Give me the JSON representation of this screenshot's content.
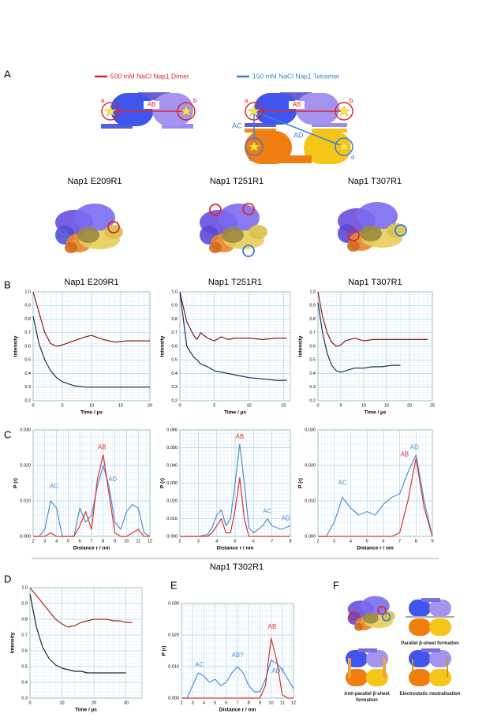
{
  "panel_labels": [
    "A",
    "B",
    "C",
    "D",
    "E",
    "F"
  ],
  "legend": [
    {
      "text": "500 mM NaCl Nap1 Dimer",
      "color": "#e0262a"
    },
    {
      "text": "150 mM NaCl Nap1 Tetramer",
      "color": "#3b7dd8"
    }
  ],
  "dimer_labels": {
    "a": "a",
    "ab": "AB",
    "b": "b"
  },
  "tetramer_labels": {
    "a": "a",
    "ab": "AB",
    "b": "b",
    "ac": "AC",
    "ad": "AD",
    "c": "c",
    "d": "d"
  },
  "structures": [
    "Nap1 E209R1",
    "Nap1 T251R1",
    "Nap1 T307R1"
  ],
  "section_title": "Nap1 T302R1",
  "panel_f_captions": [
    "Parallel β-sheet formation",
    "Anti-parallel β-sheet formation",
    "Electrostatic neutralisation"
  ],
  "chart_data": [
    {
      "type": "line",
      "title": "Nap1 E209R1",
      "xlabel": "Time / µs",
      "ylabel": "Intensity",
      "grid": true,
      "xlim": [
        0,
        20
      ],
      "xticks": [
        0,
        5,
        10,
        15,
        20
      ],
      "ylim": [
        0.2,
        1.0
      ],
      "yticks": [
        0.2,
        0.3,
        0.4,
        0.5,
        0.6,
        0.7,
        0.8,
        0.9,
        {
          "value": 1,
          "label": "1.0"
        }
      ],
      "x": [
        0,
        1,
        2,
        3,
        4,
        5,
        7,
        9,
        10,
        12,
        14,
        16,
        18,
        20
      ],
      "series": [
        {
          "color": "#8b1a1a",
          "values": [
            1,
            0.85,
            0.7,
            0.62,
            0.6,
            0.61,
            0.64,
            0.67,
            0.68,
            0.65,
            0.63,
            0.64,
            0.64,
            0.64
          ]
        },
        {
          "color": "#1f3550",
          "values": [
            0.82,
            0.62,
            0.5,
            0.42,
            0.37,
            0.34,
            0.31,
            0.3,
            0.3,
            0.3,
            0.3,
            0.3,
            0.3,
            0.3
          ]
        }
      ]
    },
    {
      "type": "line",
      "title": "Nap1 T251R1",
      "xlabel": "Time / µs",
      "ylabel": "Intensity",
      "grid": true,
      "xlim": [
        0,
        16
      ],
      "xticks": [
        0,
        5,
        10,
        15
      ],
      "ylim": [
        0.2,
        1.0
      ],
      "yticks": [
        0.2,
        0.3,
        0.4,
        0.5,
        0.6,
        0.7,
        0.8,
        0.9,
        {
          "value": 1,
          "label": "1.0"
        }
      ],
      "x": [
        0,
        1,
        2,
        2.5,
        3,
        4,
        5,
        6,
        7,
        8,
        10,
        12,
        14,
        15.5
      ],
      "series": [
        {
          "color": "#8b1a1a",
          "values": [
            1,
            0.78,
            0.68,
            0.65,
            0.7,
            0.66,
            0.64,
            0.67,
            0.65,
            0.66,
            0.66,
            0.65,
            0.66,
            0.66
          ]
        },
        {
          "color": "#1f3550",
          "values": [
            1,
            0.6,
            0.52,
            0.5,
            0.47,
            0.45,
            0.42,
            0.41,
            0.4,
            0.39,
            0.37,
            0.36,
            0.35,
            0.35
          ]
        }
      ]
    },
    {
      "type": "line",
      "title": "Nap1 T307R1",
      "xlabel": "Time / µs",
      "ylabel": "Intensity",
      "grid": true,
      "xlim": [
        0,
        25
      ],
      "xticks": [
        0,
        5,
        10,
        15,
        20,
        25
      ],
      "ylim": [
        0.2,
        1.0
      ],
      "yticks": [
        0.2,
        0.3,
        0.4,
        0.5,
        0.6,
        0.7,
        0.8,
        0.9,
        {
          "value": 1,
          "label": "1.0"
        }
      ],
      "x": [
        0,
        1,
        2,
        3,
        4,
        5,
        6,
        8,
        10,
        12,
        14,
        16,
        18,
        20,
        22,
        24
      ],
      "series": [
        {
          "color": "#8b1a1a",
          "values": [
            1,
            0.82,
            0.7,
            0.63,
            0.6,
            0.61,
            0.64,
            0.66,
            0.64,
            0.65,
            0.65,
            0.65,
            0.65,
            0.65,
            0.65,
            0.65
          ]
        },
        {
          "color": "#1f3550",
          "values": [
            0.92,
            0.7,
            0.55,
            0.46,
            0.42,
            0.41,
            0.42,
            0.44,
            0.44,
            0.45,
            0.45,
            0.46,
            0.46,
            null,
            null,
            null
          ]
        }
      ]
    },
    {
      "type": "line",
      "xlabel": "Distance r / nm",
      "ylabel": "P (r)",
      "grid": true,
      "xlim": [
        2,
        12
      ],
      "xticks": [
        2,
        3,
        4,
        5,
        6,
        7,
        8,
        9,
        10,
        11,
        12
      ],
      "ylim": [
        0,
        0.03
      ],
      "yticks": [
        {
          "value": 0,
          "label": "0.000"
        },
        {
          "value": 0.01,
          "label": "0.010"
        },
        {
          "value": 0.02,
          "label": "0.020"
        },
        {
          "value": 0.03,
          "label": "0.030"
        }
      ],
      "x": [
        2,
        2.5,
        3,
        3.5,
        4,
        4.5,
        5,
        5.5,
        6,
        6.5,
        7,
        7.5,
        8,
        8.5,
        9,
        9.5,
        10,
        10.5,
        11,
        11.5,
        12
      ],
      "series": [
        {
          "color": "#4a90d9",
          "values": [
            0,
            0,
            0.002,
            0.01,
            0.008,
            0,
            0,
            0,
            0.008,
            0.004,
            0.006,
            0.014,
            0.02,
            0.014,
            0.004,
            0.002,
            0.007,
            0.009,
            0.008,
            0.001,
            0
          ]
        },
        {
          "color": "#e03030",
          "values": [
            0,
            0,
            0,
            0.001,
            0,
            0,
            0,
            0,
            0.003,
            0.007,
            0.002,
            0.016,
            0.023,
            0.012,
            0.001,
            0,
            0,
            0.001,
            0.002,
            0,
            0
          ]
        }
      ],
      "annotations": [
        {
          "text": "AC",
          "x": 3.8,
          "y": 0.014,
          "color": "#4a90d9"
        },
        {
          "text": "AB",
          "x": 7.9,
          "y": 0.025,
          "color": "#e03030"
        },
        {
          "text": "AD",
          "x": 8.8,
          "y": 0.016,
          "color": "#4a90d9"
        }
      ]
    },
    {
      "type": "line",
      "xlabel": "Distance r / nm",
      "ylabel": "P (r)",
      "grid": true,
      "xlim": [
        2,
        8
      ],
      "xticks": [
        2,
        3,
        4,
        5,
        6,
        7,
        8
      ],
      "ylim": [
        0,
        0.06
      ],
      "yticks": [
        {
          "value": 0,
          "label": "0.000"
        },
        {
          "value": 0.01,
          "label": "0.010"
        },
        {
          "value": 0.02,
          "label": "0.020"
        },
        {
          "value": 0.03,
          "label": "0.030"
        },
        {
          "value": 0.04,
          "label": "0.040"
        },
        {
          "value": 0.05,
          "label": "0.050"
        },
        {
          "value": 0.06,
          "label": "0.060"
        }
      ],
      "x": [
        2,
        2.5,
        3,
        3.5,
        3.75,
        4,
        4.25,
        4.5,
        4.75,
        5,
        5.25,
        5.5,
        5.75,
        6,
        6.5,
        6.75,
        7,
        7.5,
        8
      ],
      "series": [
        {
          "color": "#4a90d9",
          "values": [
            0,
            0,
            0,
            0.001,
            0.005,
            0.012,
            0.015,
            0.006,
            0.01,
            0.03,
            0.052,
            0.03,
            0.005,
            0.002,
            0.006,
            0.01,
            0.006,
            0.004,
            0.006
          ]
        },
        {
          "color": "#e03030",
          "values": [
            0,
            0,
            0,
            0,
            0.002,
            0.006,
            0.01,
            0.002,
            0.002,
            0.015,
            0.033,
            0.01,
            0,
            0,
            0,
            0,
            0,
            0,
            0
          ]
        }
      ],
      "annotations": [
        {
          "text": "AB",
          "x": 5.25,
          "y": 0.056,
          "color": "#e03030"
        },
        {
          "text": "AC",
          "x": 6.75,
          "y": 0.014,
          "color": "#4a90d9"
        },
        {
          "text": "AD",
          "x": 7.75,
          "y": 0.01,
          "color": "#4a90d9"
        }
      ]
    },
    {
      "type": "line",
      "xlabel": "Distance r / nm",
      "ylabel": "P (r)",
      "grid": true,
      "xlim": [
        2,
        9
      ],
      "xticks": [
        2,
        3,
        4,
        5,
        6,
        7,
        8,
        9
      ],
      "ylim": [
        0,
        0.03
      ],
      "yticks": [
        {
          "value": 0,
          "label": "0.000"
        },
        {
          "value": 0.01,
          "label": "0.010"
        },
        {
          "value": 0.02,
          "label": "0.020"
        },
        {
          "value": 0.03,
          "label": "0.030"
        }
      ],
      "x": [
        2,
        2.5,
        3,
        3.5,
        4,
        4.5,
        5,
        5.5,
        6,
        6.5,
        7,
        7.5,
        8,
        8.5,
        9
      ],
      "series": [
        {
          "color": "#4a90d9",
          "values": [
            0,
            0,
            0.004,
            0.011,
            0.008,
            0.006,
            0.007,
            0.006,
            0.009,
            0.011,
            0.012,
            0.018,
            0.023,
            0.01,
            0
          ]
        },
        {
          "color": "#e03030",
          "values": [
            0,
            0,
            0,
            0,
            0,
            0,
            0,
            0,
            0,
            0,
            0.001,
            0.01,
            0.022,
            0.008,
            0
          ]
        }
      ],
      "annotations": [
        {
          "text": "AC",
          "x": 3.5,
          "y": 0.015,
          "color": "#4a90d9"
        },
        {
          "text": "AB",
          "x": 7.3,
          "y": 0.023,
          "color": "#e03030"
        },
        {
          "text": "AD",
          "x": 7.9,
          "y": 0.025,
          "color": "#4a90d9"
        }
      ]
    },
    {
      "type": "line",
      "xlabel": "Time / µs",
      "ylabel": "Intensity",
      "grid": true,
      "xlim": [
        0,
        35
      ],
      "xticks": [
        0,
        10,
        20,
        30
      ],
      "ylim": [
        0.3,
        1.0
      ],
      "yticks": [
        0.3,
        0.4,
        0.5,
        0.6,
        0.7,
        0.8,
        0.9,
        {
          "value": 1,
          "label": "1.0"
        }
      ],
      "x": [
        0,
        2,
        4,
        6,
        8,
        10,
        12,
        14,
        16,
        18,
        20,
        22,
        24,
        26,
        28,
        30,
        32
      ],
      "series": [
        {
          "color": "#b3262a",
          "values": [
            1,
            0.95,
            0.9,
            0.85,
            0.8,
            0.77,
            0.75,
            0.76,
            0.78,
            0.79,
            0.8,
            0.8,
            0.8,
            0.79,
            0.79,
            0.78,
            0.78
          ]
        },
        {
          "color": "#1c2430",
          "values": [
            0.96,
            0.75,
            0.62,
            0.55,
            0.51,
            0.49,
            0.48,
            0.47,
            0.47,
            0.46,
            0.46,
            0.46,
            0.46,
            0.46,
            0.46,
            0.46,
            null
          ]
        }
      ]
    },
    {
      "type": "line",
      "xlabel": "Distance r / nm",
      "ylabel": "P (r)",
      "grid": true,
      "xlim": [
        2,
        12
      ],
      "xticks": [
        2,
        3,
        4,
        5,
        6,
        7,
        8,
        9,
        10,
        11,
        12
      ],
      "ylim": [
        0,
        0.03
      ],
      "yticks": [
        {
          "value": 0,
          "label": "0.000"
        },
        {
          "value": 0.01,
          "label": "0.010"
        },
        {
          "value": 0.02,
          "label": "0.020"
        },
        {
          "value": 0.03,
          "label": "0.030"
        }
      ],
      "x": [
        2,
        2.5,
        3,
        3.5,
        4,
        4.5,
        5,
        5.5,
        6,
        6.5,
        7,
        7.5,
        8,
        8.5,
        9,
        9.5,
        10,
        10.5,
        11,
        11.5,
        12
      ],
      "series": [
        {
          "color": "#4a90d9",
          "values": [
            0,
            0,
            0.004,
            0.008,
            0.007,
            0.005,
            0.006,
            0.004,
            0.005,
            0.008,
            0.01,
            0.008,
            0.004,
            0.002,
            0.002,
            0.006,
            0.012,
            0.011,
            0.009,
            0.006,
            0.003
          ]
        },
        {
          "color": "#e03030",
          "values": [
            0,
            0,
            0,
            0,
            0,
            0,
            0,
            0,
            0,
            0,
            0,
            0,
            0,
            0,
            0,
            0.004,
            0.019,
            0.012,
            0.001,
            0,
            0
          ]
        }
      ],
      "annotations": [
        {
          "text": "AC",
          "x": 3.6,
          "y": 0.0105,
          "color": "#4a90d9"
        },
        {
          "text": "AB?",
          "x": 7,
          "y": 0.0135,
          "color": "#4a90d9"
        },
        {
          "text": "AB",
          "x": 10.1,
          "y": 0.0225,
          "color": "#e03030"
        },
        {
          "text": "AD?",
          "x": 10.6,
          "y": 0.0085,
          "color": "#4a90d9"
        }
      ]
    }
  ]
}
